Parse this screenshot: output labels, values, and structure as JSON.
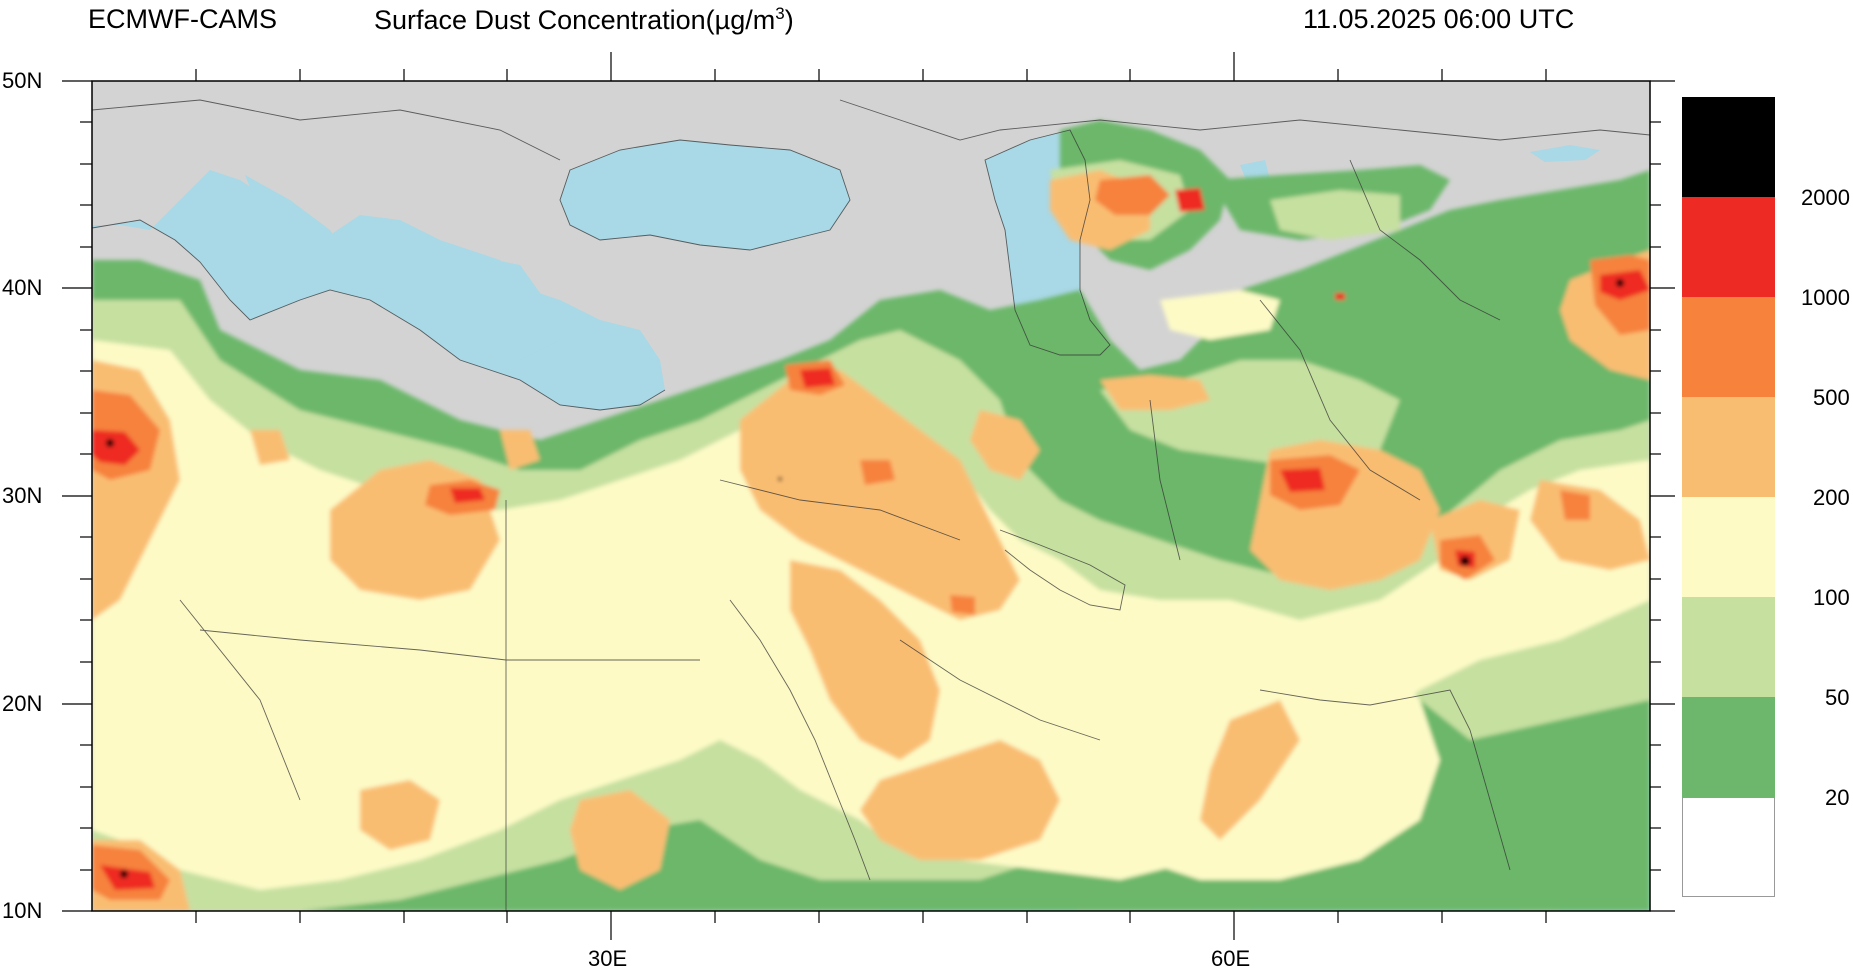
{
  "header": {
    "model": "ECMWF-CAMS",
    "variable": "Surface Dust Concentration(µg/m",
    "variable_sup": "3",
    "variable_close": ")",
    "valid_time": "11.05.2025 06:00 UTC"
  },
  "axes": {
    "lat_labels": [
      "50N",
      "40N",
      "30N",
      "20N",
      "10N"
    ],
    "lon_labels": [
      "30E",
      "60E"
    ]
  },
  "colorbar": {
    "levels": [
      "2000",
      "1000",
      "500",
      "200",
      "100",
      "50",
      "20"
    ],
    "colors": [
      "#000000",
      "#ee2a24",
      "#f6823c",
      "#f9bd72",
      "#fdfac6",
      "#c6e0a0",
      "#6cb76b",
      "#ffffff"
    ]
  },
  "map_colors": {
    "land": "#d3d3d3",
    "sea": "#a9d8e6"
  }
}
